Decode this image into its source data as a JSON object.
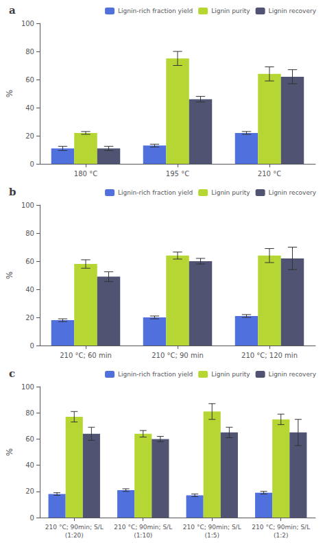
{
  "chart_data": [
    {
      "type": "bar",
      "title": "a",
      "y_label": "%",
      "categories": [
        "180 °C",
        "195 °C",
        "210 °C"
      ],
      "series": [
        {
          "name": "Lignin-rich fraction yield",
          "values": [
            11,
            13,
            22
          ],
          "errors": [
            1.5,
            1.0,
            1.0
          ]
        },
        {
          "name": "Lignin purity",
          "values": [
            22,
            75,
            64
          ],
          "errors": [
            1.0,
            5.0,
            5.0
          ]
        },
        {
          "name": "Lignin recovery",
          "values": [
            11,
            46,
            62
          ],
          "errors": [
            1.5,
            2.0,
            5.0
          ]
        }
      ],
      "ylim": [
        0,
        100
      ],
      "yticks": [
        0,
        20,
        40,
        60,
        80,
        100
      ],
      "grid": false,
      "legend": "upper right"
    },
    {
      "type": "bar",
      "title": "b",
      "y_label": "%",
      "categories": [
        "210 °C; 60 min",
        "210 °C; 90 min",
        "210 °C; 120 min"
      ],
      "series": [
        {
          "name": "Lignin-rich fraction yield",
          "values": [
            18,
            20,
            21
          ],
          "errors": [
            1.0,
            1.0,
            1.0
          ]
        },
        {
          "name": "Lignin purity",
          "values": [
            58,
            64,
            64
          ],
          "errors": [
            3.0,
            2.5,
            5.0
          ]
        },
        {
          "name": "Lignin recovery",
          "values": [
            49,
            60,
            62
          ],
          "errors": [
            3.5,
            2.0,
            8.0
          ]
        }
      ],
      "ylim": [
        0,
        100
      ],
      "yticks": [
        0,
        20,
        40,
        60,
        80,
        100
      ],
      "grid": false,
      "legend": "upper right"
    },
    {
      "type": "bar",
      "title": "c",
      "y_label": "%",
      "categories": [
        "210 °C; 90min; S/L\n(1:20)",
        "210 °C; 90min; S/L\n(1:10)",
        "210 °C; 90min; S/L\n(1:5)",
        "210 °C; 90min; S/L\n(1:2)"
      ],
      "series": [
        {
          "name": "Lignin-rich fraction yield",
          "values": [
            18,
            21,
            17,
            19
          ],
          "errors": [
            1.0,
            1.0,
            1.0,
            1.0
          ]
        },
        {
          "name": "Lignin purity",
          "values": [
            77,
            64,
            81,
            75
          ],
          "errors": [
            4.0,
            2.5,
            6.0,
            4.0
          ]
        },
        {
          "name": "Lignin recovery",
          "values": [
            64,
            60,
            65,
            65
          ],
          "errors": [
            5.0,
            2.0,
            4.0,
            10.0
          ]
        }
      ],
      "ylim": [
        0,
        100
      ],
      "yticks": [
        0,
        20,
        40,
        60,
        80,
        100
      ],
      "grid": false,
      "legend": "upper right"
    }
  ]
}
